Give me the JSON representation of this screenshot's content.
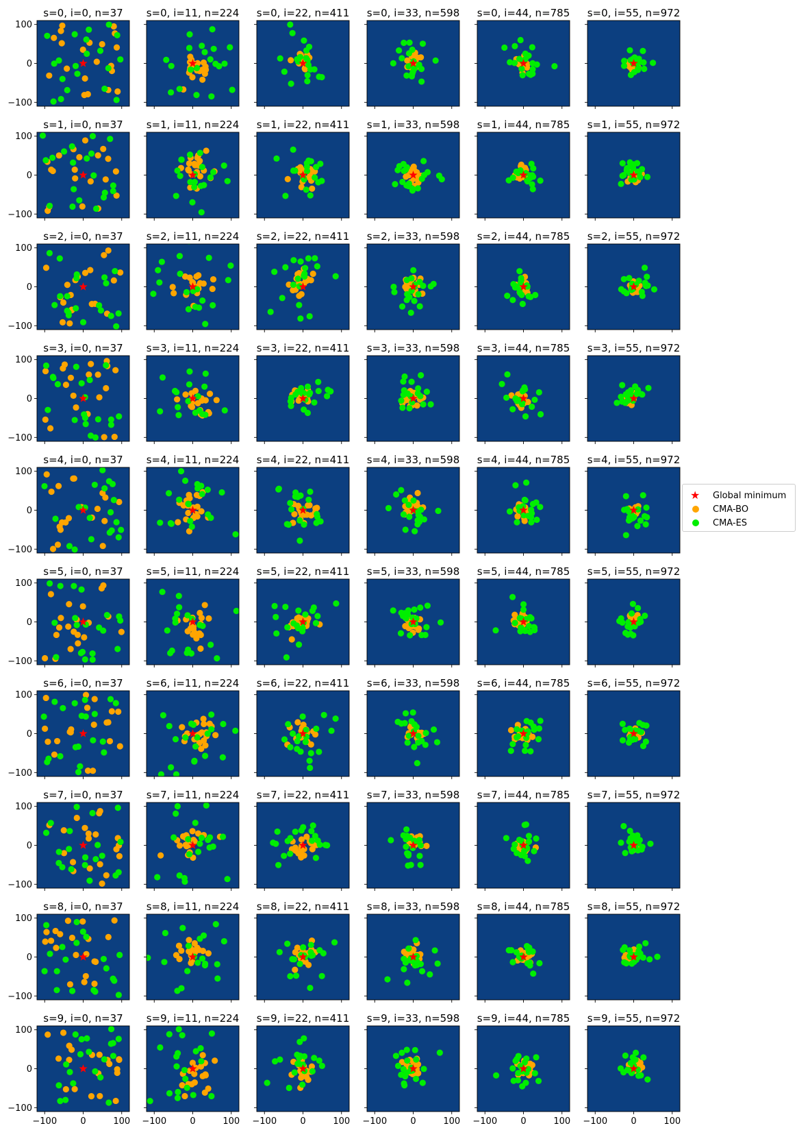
{
  "chart_data": {
    "type": "scatter",
    "layout": {
      "rows": 10,
      "cols": 6
    },
    "xlim": [
      -120,
      120
    ],
    "ylim": [
      -110,
      110
    ],
    "xticks": [
      -100,
      0,
      100
    ],
    "yticks": [
      -100,
      0,
      100
    ],
    "grid": false,
    "legend_position": "right-center",
    "background_color": "#0c3f80",
    "iterations": [
      {
        "i": 0,
        "n": 37,
        "spread": 100
      },
      {
        "i": 11,
        "n": 224,
        "spread": 65
      },
      {
        "i": 22,
        "n": 411,
        "spread": 45
      },
      {
        "i": 33,
        "n": 598,
        "spread": 35
      },
      {
        "i": 44,
        "n": 785,
        "spread": 28
      },
      {
        "i": 55,
        "n": 972,
        "spread": 22
      }
    ],
    "seeds": [
      0,
      1,
      2,
      3,
      4,
      5,
      6,
      7,
      8,
      9
    ],
    "title_template": "s={s}, i={i}, n={n}",
    "points_per_series": 20,
    "global_minimum": {
      "x": 0,
      "y": 0
    },
    "series": [
      {
        "name": "Global minimum",
        "color": "#ff0000",
        "marker": "star"
      },
      {
        "name": "CMA-BO",
        "color": "#ffa500",
        "marker": "circle"
      },
      {
        "name": "CMA-ES",
        "color": "#00ee00",
        "marker": "circle"
      }
    ]
  }
}
